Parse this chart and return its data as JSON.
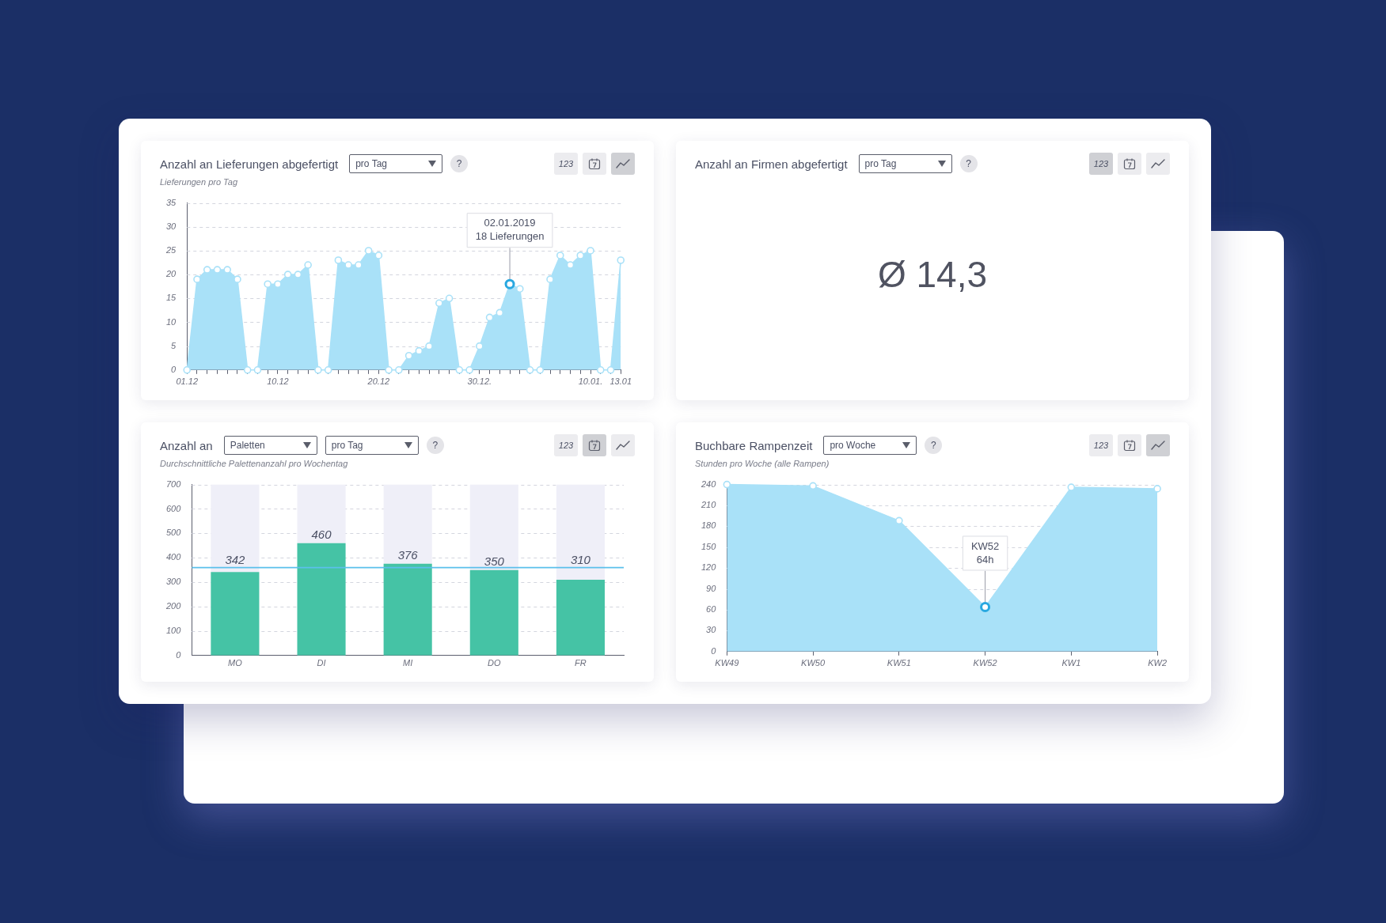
{
  "chart_data": [
    {
      "type": "area",
      "title": "Anzahl an Lieferungen abgefertigt",
      "subtitle": "Lieferungen pro Tag",
      "x": [
        "2018-12-01",
        "2018-12-02",
        "2018-12-03",
        "2018-12-04",
        "2018-12-05",
        "2018-12-06",
        "2018-12-07",
        "2018-12-08",
        "2018-12-09",
        "2018-12-10",
        "2018-12-11",
        "2018-12-12",
        "2018-12-13",
        "2018-12-14",
        "2018-12-15",
        "2018-12-16",
        "2018-12-17",
        "2018-12-18",
        "2018-12-19",
        "2018-12-20",
        "2018-12-21",
        "2018-12-22",
        "2018-12-23",
        "2018-12-24",
        "2018-12-25",
        "2018-12-26",
        "2018-12-27",
        "2018-12-28",
        "2018-12-29",
        "2018-12-30",
        "2018-12-31",
        "2019-01-01",
        "2019-01-02",
        "2019-01-03",
        "2019-01-04",
        "2019-01-05",
        "2019-01-06",
        "2019-01-07",
        "2019-01-08",
        "2019-01-09",
        "2019-01-10",
        "2019-01-11",
        "2019-01-12",
        "2019-01-13"
      ],
      "series": [
        {
          "color": "#a9e1f8",
          "values": [
            0,
            19,
            21,
            21,
            21,
            19,
            0,
            0,
            18,
            18,
            20,
            20,
            22,
            0,
            0,
            23,
            22,
            22,
            25,
            24,
            0,
            0,
            3,
            4,
            5,
            14,
            15,
            0,
            0,
            5,
            11,
            12,
            18,
            17,
            0,
            0,
            19,
            24,
            22,
            24,
            25,
            0,
            0,
            23
          ]
        }
      ],
      "xlim": [
        "2018-12-01",
        "2019-01-13"
      ],
      "xticks": [
        {
          "value": "2018-12-01",
          "label": "01.12"
        },
        {
          "value": "2018-12-02",
          "label": null
        },
        {
          "value": "2018-12-03",
          "label": null
        },
        {
          "value": "2018-12-04",
          "label": null
        },
        {
          "value": "2018-12-05",
          "label": null
        },
        {
          "value": "2018-12-06",
          "label": null
        },
        {
          "value": "2018-12-07",
          "label": null
        },
        {
          "value": "2018-12-08",
          "label": null
        },
        {
          "value": "2018-12-09",
          "label": null
        },
        {
          "value": "2018-12-10",
          "label": "10.12"
        },
        {
          "value": "2018-12-11",
          "label": null
        },
        {
          "value": "2018-12-12",
          "label": null
        },
        {
          "value": "2018-12-13",
          "label": null
        },
        {
          "value": "2018-12-14",
          "label": null
        },
        {
          "value": "2018-12-15",
          "label": null
        },
        {
          "value": "2018-12-16",
          "label": null
        },
        {
          "value": "2018-12-17",
          "label": null
        },
        {
          "value": "2018-12-18",
          "label": null
        },
        {
          "value": "2018-12-19",
          "label": null
        },
        {
          "value": "2018-12-20",
          "label": "20.12"
        },
        {
          "value": "2018-12-21",
          "label": null
        },
        {
          "value": "2018-12-22",
          "label": null
        },
        {
          "value": "2018-12-23",
          "label": null
        },
        {
          "value": "2018-12-24",
          "label": null
        },
        {
          "value": "2018-12-25",
          "label": null
        },
        {
          "value": "2018-12-26",
          "label": null
        },
        {
          "value": "2018-12-27",
          "label": null
        },
        {
          "value": "2018-12-28",
          "label": null
        },
        {
          "value": "2018-12-29",
          "label": null
        },
        {
          "value": "2018-12-30",
          "label": "30.12."
        },
        {
          "value": "2018-12-31",
          "label": null
        },
        {
          "value": "2019-01-01",
          "label": null
        },
        {
          "value": "2019-01-02",
          "label": null
        },
        {
          "value": "2019-01-03",
          "label": null
        },
        {
          "value": "2019-01-04",
          "label": null
        },
        {
          "value": "2019-01-05",
          "label": null
        },
        {
          "value": "2019-01-06",
          "label": null
        },
        {
          "value": "2019-01-07",
          "label": null
        },
        {
          "value": "2019-01-08",
          "label": null
        },
        {
          "value": "2019-01-09",
          "label": null
        },
        {
          "value": "2019-01-10",
          "label": "10.01."
        },
        {
          "value": "2019-01-11",
          "label": null
        },
        {
          "value": "2019-01-12",
          "label": null
        },
        {
          "value": "2019-01-13",
          "label": "13.01"
        }
      ],
      "ylim": [
        0,
        35
      ],
      "yticks": [
        0,
        5,
        10,
        15,
        20,
        25,
        30,
        35
      ],
      "grid": "y",
      "marker": "circle",
      "annotations": [
        "pro Tag",
        "?",
        "123",
        {
          "text": "02.01.2019\n18 Lieferungen",
          "x": "2019-01-02",
          "y": 18
        }
      ]
    },
    {
      "type": "other",
      "title": "Anzahl an Firmen abgefertigt",
      "annotations": [
        "Ø 14,3",
        "pro Tag",
        "?",
        "123"
      ]
    },
    {
      "type": "bar",
      "title": "Anzahl an",
      "subtitle": "Durchschnittliche Palettenanzahl pro Wochentag",
      "categories": [
        "MO",
        "DI",
        "MI",
        "DO",
        "FR"
      ],
      "series": [
        {
          "color": "#45c3a5",
          "values": [
            342,
            460,
            376,
            350,
            310
          ],
          "value_labels": [
            "342",
            "460",
            "376",
            "350",
            "310"
          ]
        },
        {
          "color": "#efeff8",
          "values": [
            358,
            240,
            324,
            350,
            390
          ]
        }
      ],
      "stacked": true,
      "ylim": [
        0,
        700
      ],
      "yticks": [
        0,
        100,
        200,
        300,
        400,
        500,
        600,
        700
      ],
      "grid": "y",
      "ref_lines": [
        {
          "axis": "y",
          "value": 360,
          "color": "#5bc0eb"
        }
      ],
      "annotations": [
        "Paletten",
        "pro Tag",
        "?",
        "123"
      ]
    },
    {
      "type": "area",
      "title": "Buchbare Rampenzeit",
      "subtitle": "Stunden pro Woche (alle Rampen)",
      "categories": [
        "KW49",
        "KW50",
        "KW51",
        "KW52",
        "KW1",
        "KW2"
      ],
      "series": [
        {
          "color": "#a9e1f8",
          "values": [
            240,
            238,
            188,
            64,
            236,
            234
          ]
        }
      ],
      "ylim": [
        0,
        240
      ],
      "yticks": [
        0,
        30,
        60,
        90,
        120,
        150,
        180,
        210,
        240
      ],
      "grid": "y",
      "marker": "circle",
      "annotations": [
        "pro Woche",
        "?",
        "123",
        {
          "text": "KW52\n64h",
          "x": "KW52",
          "y": 64
        }
      ]
    }
  ]
}
